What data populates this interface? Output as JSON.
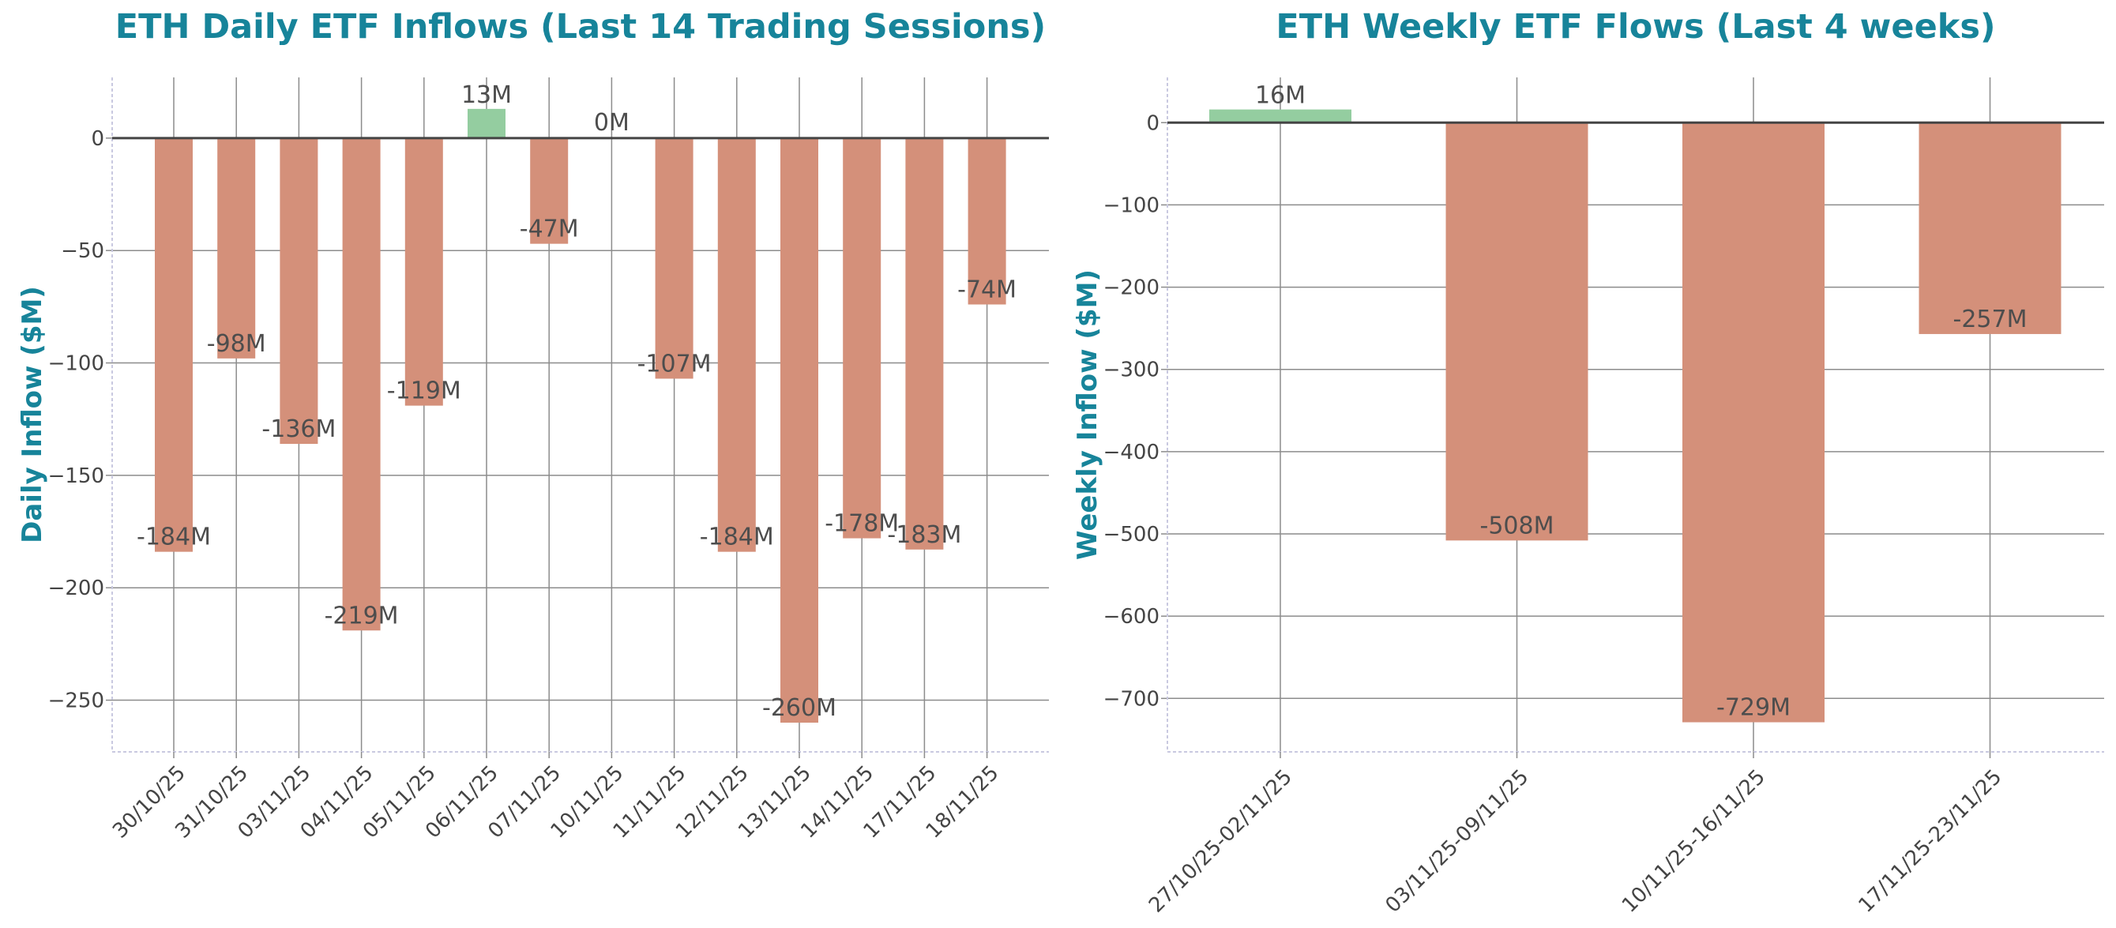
{
  "colors": {
    "negative": "#d4907a",
    "positive": "#94cda0",
    "title": "#17849a",
    "text": "#4d4d4d"
  },
  "chart_data": [
    {
      "type": "bar",
      "title": "ETH Daily ETF Inflows (Last 14 Trading Sessions)",
      "xlabel": "",
      "ylabel": "Daily Inflow ($M)",
      "ylim": [
        -273,
        27
      ],
      "yticks": [
        0,
        -50,
        -100,
        -150,
        -200,
        -250
      ],
      "ytick_labels": [
        "0",
        "−50",
        "−100",
        "−150",
        "−200",
        "−250"
      ],
      "categories": [
        "30/10/25",
        "31/10/25",
        "03/11/25",
        "04/11/25",
        "05/11/25",
        "06/11/25",
        "07/11/25",
        "10/11/25",
        "11/11/25",
        "12/11/25",
        "13/11/25",
        "14/11/25",
        "17/11/25",
        "18/11/25"
      ],
      "values": [
        -184,
        -98,
        -136,
        -219,
        -119,
        13,
        -47,
        0,
        -107,
        -184,
        -260,
        -178,
        -183,
        -74
      ],
      "value_labels": [
        "-184M",
        "-98M",
        "-136M",
        "-219M",
        "-119M",
        "13M",
        "-47M",
        "0M",
        "-107M",
        "-184M",
        "-260M",
        "-178M",
        "-183M",
        "-74M"
      ],
      "grid": true
    },
    {
      "type": "bar",
      "title": "ETH Weekly ETF Flows (Last 4 weeks)",
      "xlabel": "",
      "ylabel": "Weekly Inflow ($M)",
      "ylim": [
        -765,
        55
      ],
      "yticks": [
        0,
        -100,
        -200,
        -300,
        -400,
        -500,
        -600,
        -700
      ],
      "ytick_labels": [
        "0",
        "−100",
        "−200",
        "−300",
        "−400",
        "−500",
        "−600",
        "−700"
      ],
      "categories": [
        "27/10/25-02/11/25",
        "03/11/25-09/11/25",
        "10/11/25-16/11/25",
        "17/11/25-23/11/25"
      ],
      "values": [
        16,
        -508,
        -729,
        -257
      ],
      "value_labels": [
        "16M",
        "-508M",
        "-729M",
        "-257M"
      ],
      "grid": true
    }
  ]
}
